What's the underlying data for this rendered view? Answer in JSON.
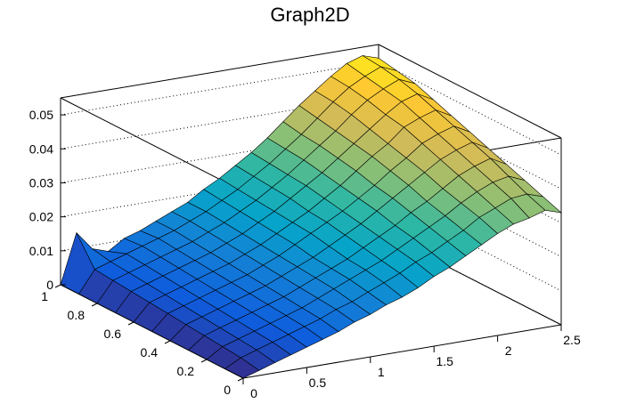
{
  "chart_data": {
    "type": "surface",
    "title": "Graph2D",
    "xlabel": "",
    "ylabel": "",
    "zlabel": "",
    "xlim": [
      0,
      2.5
    ],
    "ylim": [
      0,
      1
    ],
    "zlim": [
      0,
      0.055
    ],
    "x_ticks": [
      {
        "value": 0,
        "label": "0"
      },
      {
        "value": 0.5,
        "label": "0.5"
      },
      {
        "value": 1,
        "label": "1"
      },
      {
        "value": 1.5,
        "label": "1.5"
      },
      {
        "value": 2,
        "label": "2"
      },
      {
        "value": 2.5,
        "label": "2.5"
      }
    ],
    "y_ticks": [
      {
        "value": 0,
        "label": "0"
      },
      {
        "value": 0.2,
        "label": "0.2"
      },
      {
        "value": 0.4,
        "label": "0.4"
      },
      {
        "value": 0.6,
        "label": "0.6"
      },
      {
        "value": 0.8,
        "label": "0.8"
      },
      {
        "value": 1,
        "label": "1"
      }
    ],
    "z_ticks": [
      {
        "value": 0,
        "label": "0"
      },
      {
        "value": 0.01,
        "label": "0.01"
      },
      {
        "value": 0.02,
        "label": "0.02"
      },
      {
        "value": 0.03,
        "label": "0.03"
      },
      {
        "value": 0.04,
        "label": "0.04"
      },
      {
        "value": 0.05,
        "label": "0.05"
      }
    ],
    "grid": "dotted z-gridlines on back walls",
    "colormap": [
      "#352a87",
      "#0f5cdd",
      "#1481d6",
      "#06a4ca",
      "#2eb7a4",
      "#87bf77",
      "#d1bb59",
      "#fec832",
      "#f9fb0e"
    ],
    "grid_x": [
      0,
      0.125,
      0.25,
      0.375,
      0.5,
      0.625,
      0.75,
      0.875,
      1.0,
      1.125,
      1.25,
      1.375,
      1.5,
      1.625,
      1.75,
      1.875,
      2.0,
      2.125,
      2.25,
      2.375,
      2.5
    ],
    "grid_y": [
      0,
      0.1,
      0.2,
      0.3,
      0.4,
      0.5,
      0.6,
      0.7,
      0.8,
      0.9,
      1.0
    ],
    "z_values": [
      [
        0.0,
        0.0015,
        0.003,
        0.0045,
        0.006,
        0.0075,
        0.009,
        0.011,
        0.0125,
        0.0145,
        0.016,
        0.018,
        0.0205,
        0.0225,
        0.025,
        0.0275,
        0.03,
        0.032,
        0.033,
        0.0345,
        0.033
      ],
      [
        0.0,
        0.0025,
        0.004,
        0.0055,
        0.007,
        0.0085,
        0.01,
        0.012,
        0.0135,
        0.0155,
        0.0175,
        0.0195,
        0.022,
        0.024,
        0.0265,
        0.029,
        0.032,
        0.034,
        0.036,
        0.0365,
        0.035
      ],
      [
        0.0,
        0.003,
        0.0045,
        0.006,
        0.0075,
        0.009,
        0.0105,
        0.0125,
        0.0145,
        0.0165,
        0.0185,
        0.0205,
        0.023,
        0.0255,
        0.028,
        0.0305,
        0.0335,
        0.036,
        0.038,
        0.039,
        0.037
      ],
      [
        0.0,
        0.0035,
        0.005,
        0.0065,
        0.008,
        0.0095,
        0.011,
        0.013,
        0.015,
        0.017,
        0.019,
        0.0215,
        0.024,
        0.0265,
        0.0295,
        0.032,
        0.035,
        0.038,
        0.04,
        0.0415,
        0.039
      ],
      [
        0.0,
        0.004,
        0.0055,
        0.007,
        0.0085,
        0.01,
        0.0115,
        0.0135,
        0.0155,
        0.0175,
        0.02,
        0.0225,
        0.025,
        0.028,
        0.031,
        0.034,
        0.037,
        0.04,
        0.042,
        0.0435,
        0.041
      ],
      [
        0.0,
        0.0045,
        0.006,
        0.0075,
        0.009,
        0.0105,
        0.012,
        0.014,
        0.016,
        0.0185,
        0.021,
        0.0235,
        0.026,
        0.029,
        0.032,
        0.0355,
        0.0385,
        0.042,
        0.044,
        0.0455,
        0.043
      ],
      [
        0.0,
        0.005,
        0.0065,
        0.008,
        0.0095,
        0.011,
        0.0125,
        0.0145,
        0.0165,
        0.019,
        0.0215,
        0.024,
        0.027,
        0.03,
        0.0335,
        0.037,
        0.04,
        0.044,
        0.046,
        0.0475,
        0.045
      ],
      [
        0.0,
        0.0055,
        0.007,
        0.0085,
        0.01,
        0.0115,
        0.013,
        0.015,
        0.017,
        0.0195,
        0.022,
        0.025,
        0.028,
        0.031,
        0.0345,
        0.038,
        0.0415,
        0.045,
        0.048,
        0.0495,
        0.047
      ],
      [
        0.0,
        0.006,
        0.0075,
        0.009,
        0.0105,
        0.012,
        0.0135,
        0.0155,
        0.0175,
        0.02,
        0.0225,
        0.0255,
        0.0285,
        0.032,
        0.0355,
        0.039,
        0.043,
        0.0465,
        0.049,
        0.051,
        0.049
      ],
      [
        0.0,
        0.0065,
        0.008,
        0.0095,
        0.011,
        0.0125,
        0.014,
        0.016,
        0.018,
        0.0205,
        0.023,
        0.026,
        0.029,
        0.0325,
        0.036,
        0.04,
        0.044,
        0.0475,
        0.05,
        0.052,
        0.05
      ],
      [
        0.0,
        0.0145,
        0.009,
        0.0075,
        0.0105,
        0.012,
        0.014,
        0.016,
        0.018,
        0.021,
        0.0235,
        0.0265,
        0.0295,
        0.033,
        0.037,
        0.041,
        0.0445,
        0.048,
        0.051,
        0.0525,
        0.051
      ]
    ]
  }
}
